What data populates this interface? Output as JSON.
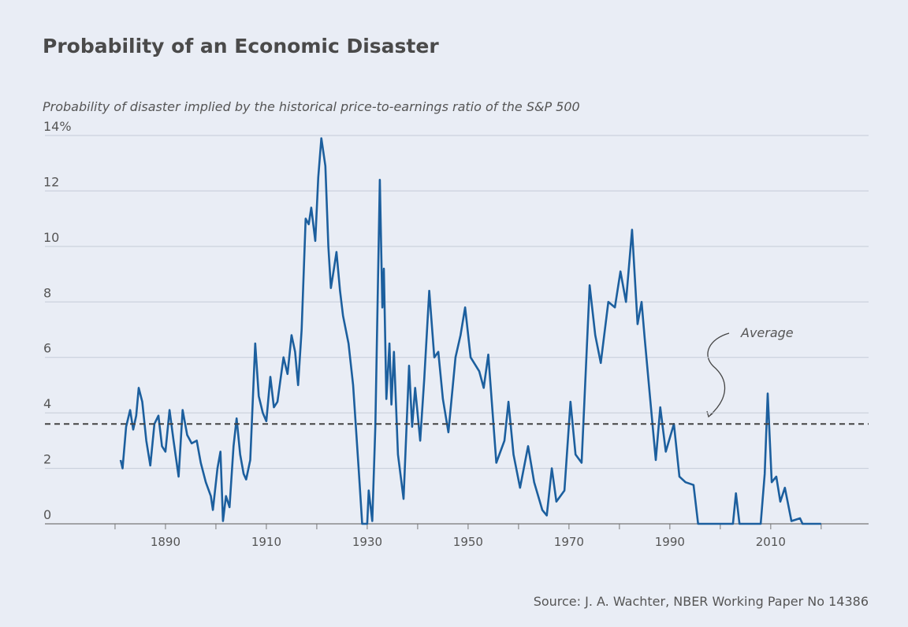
{
  "chart_data": {
    "type": "line",
    "title": "Probability of an Economic Disaster",
    "subtitle": "Probability of disaster implied by the historical price-to-earnings ratio of the S&P 500",
    "source": "Source: J. A. Wachter, NBER Working Paper No 14386",
    "series": [
      {
        "color": "#1c5f9e",
        "x": [
          1881.1,
          1881.5,
          1882.2,
          1883,
          1883.6,
          1884.2,
          1884.7,
          1885.4,
          1886.2,
          1887,
          1887.8,
          1888.6,
          1889.3,
          1890,
          1890.8,
          1891.6,
          1892.6,
          1893.4,
          1894.3,
          1895.2,
          1896.2,
          1897,
          1898,
          1899,
          1899.4,
          1900.3,
          1900.9,
          1901.4,
          1902,
          1902.7,
          1903.5,
          1904.1,
          1904.8,
          1905.5,
          1906,
          1906.8,
          1907.8,
          1908.5,
          1909.3,
          1910,
          1910.8,
          1911.5,
          1912.2,
          1913.4,
          1914.2,
          1915,
          1915.7,
          1916.3,
          1917,
          1917.8,
          1918.4,
          1918.9,
          1919.7,
          1920.3,
          1920.9,
          1921.7,
          1922.3,
          1922.8,
          1923.4,
          1923.9,
          1924.6,
          1925.2,
          1926.3,
          1927.2,
          1928.3,
          1929,
          1930,
          1930.3,
          1931,
          1931.6,
          1932.5,
          1933,
          1933.3,
          1933.8,
          1934.4,
          1934.8,
          1935.3,
          1936.1,
          1937.2,
          1938.3,
          1938.9,
          1939.5,
          1940.5,
          1941.3,
          1942.3,
          1943.3,
          1944.1,
          1945,
          1946.1,
          1947.5,
          1948.5,
          1949.4,
          1950.5,
          1952.2,
          1953.1,
          1954,
          1955.6,
          1957.2,
          1958,
          1959,
          1960.3,
          1961.9,
          1963.1,
          1964.7,
          1965.6,
          1966.6,
          1967.5,
          1969.1,
          1970.3,
          1971.3,
          1972.5,
          1974.1,
          1975.2,
          1976.3,
          1977.8,
          1979.1,
          1980.2,
          1981.3,
          1982.5,
          1983.6,
          1984.4,
          1985,
          1986.1,
          1987.2,
          1988.1,
          1989.2,
          1990.8,
          1991.9,
          1993.1,
          1994.7,
          1995.6,
          2002.5,
          2003.1,
          2003.8,
          2008,
          2008.8,
          2009.4,
          2010.2,
          2011.1,
          2011.9,
          2012.8,
          2014.1,
          2015.8,
          2016.3,
          2020
        ],
        "values": [
          2.3,
          2.0,
          3.5,
          4.1,
          3.4,
          3.9,
          4.9,
          4.4,
          3.0,
          2.1,
          3.6,
          3.9,
          2.8,
          2.6,
          4.1,
          3.0,
          1.7,
          4.1,
          3.2,
          2.9,
          3.0,
          2.2,
          1.5,
          1.0,
          0.5,
          2.0,
          2.6,
          0.1,
          1.0,
          0.6,
          2.8,
          3.8,
          2.5,
          1.8,
          1.6,
          2.3,
          6.5,
          4.6,
          4.0,
          3.7,
          5.3,
          4.2,
          4.4,
          6.0,
          5.4,
          6.8,
          6.2,
          5.0,
          7.0,
          11.0,
          10.8,
          11.4,
          10.2,
          12.5,
          13.9,
          12.9,
          10.0,
          8.5,
          9.2,
          9.8,
          8.4,
          7.5,
          6.5,
          5.0,
          2.0,
          0,
          0,
          1.2,
          0.1,
          3.5,
          12.4,
          7.8,
          9.2,
          4.5,
          6.5,
          4.3,
          6.2,
          2.5,
          0.9,
          5.7,
          3.5,
          4.9,
          3.0,
          5.2,
          8.4,
          6.0,
          6.2,
          4.5,
          3.3,
          6.0,
          6.8,
          7.8,
          6.0,
          5.5,
          4.9,
          6.1,
          2.2,
          3.0,
          4.4,
          2.5,
          1.3,
          2.8,
          1.5,
          0.5,
          0.3,
          2.0,
          0.8,
          1.2,
          4.4,
          2.5,
          2.2,
          8.6,
          6.8,
          5.8,
          8.0,
          7.8,
          9.1,
          8.0,
          10.6,
          7.2,
          8.0,
          6.7,
          4.5,
          2.3,
          4.2,
          2.6,
          3.6,
          1.7,
          1.5,
          1.4,
          0,
          0,
          1.1,
          0,
          0,
          1.8,
          4.7,
          1.5,
          1.7,
          0.8,
          1.3,
          0.1,
          0.2,
          0,
          0
        ]
      }
    ],
    "average": 3.6,
    "average_label": "Average",
    "xlim": [
      1866.1,
      2029.4
    ],
    "xticks": [
      1890,
      1910,
      1930,
      1950,
      1970,
      1990,
      2010
    ],
    "xminorticks": [
      1880,
      1900,
      1920,
      1940,
      1960,
      1980,
      2000,
      2020
    ],
    "ylim": [
      0,
      14
    ],
    "yticks": [
      0,
      2,
      4,
      6,
      8,
      10,
      12,
      {
        "value": 14,
        "label": "14%"
      }
    ],
    "grid": true
  }
}
